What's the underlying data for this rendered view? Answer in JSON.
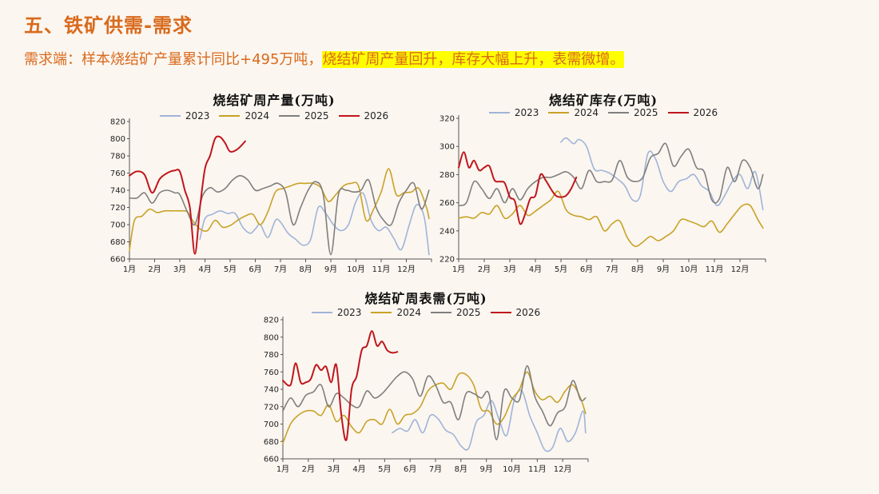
{
  "header": {
    "title": "五、铁矿供需-需求",
    "subtitle_plain": "需求端：样本烧结矿产量累计同比+495万吨，",
    "subtitle_highlight": "烧结矿周产量回升，库存大幅上升，表需微增。"
  },
  "colors": {
    "2023": "#9fb4d9",
    "2024": "#c9a227",
    "2025": "#7f7f7f",
    "2026": "#c0151b",
    "accent": "#d96a1c",
    "highlight": "#ffff00"
  },
  "chart_data": [
    {
      "id": "production",
      "type": "line",
      "title": "烧结矿周产量(万吨)",
      "months": [
        "1月",
        "2月",
        "3月",
        "4月",
        "5月",
        "6月",
        "7月",
        "8月",
        "9月",
        "10月",
        "11月",
        "12月"
      ],
      "ylim": [
        660,
        820
      ],
      "yticks": [
        660,
        680,
        700,
        720,
        740,
        760,
        780,
        800,
        820
      ],
      "grid": false,
      "legend_position": "top",
      "series": [
        {
          "name": "2023",
          "x": [
            3.8,
            4.0,
            4.3,
            4.6,
            4.9,
            5.2,
            5.5,
            5.8,
            6.0,
            6.2,
            6.5,
            6.8,
            7.0,
            7.3,
            7.6,
            7.9,
            8.2,
            8.5,
            8.8,
            9.1,
            9.4,
            9.7,
            10.0,
            10.3,
            10.6,
            10.9,
            11.2,
            11.5,
            11.8,
            12.1,
            12.4,
            12.7,
            12.9
          ],
          "values": [
            683,
            707,
            712,
            716,
            713,
            713,
            697,
            690,
            695,
            700,
            685,
            705,
            703,
            690,
            683,
            676,
            683,
            720,
            713,
            700,
            693,
            700,
            727,
            736,
            705,
            693,
            697,
            684,
            671,
            698,
            723,
            710,
            665
          ]
        },
        {
          "name": "2024",
          "x": [
            1.0,
            1.2,
            1.5,
            1.8,
            2.1,
            2.4,
            2.7,
            3.0,
            3.3,
            3.5,
            3.8,
            4.1,
            4.4,
            4.7,
            5.0,
            5.3,
            5.6,
            5.9,
            6.2,
            6.5,
            6.8,
            7.1,
            7.4,
            7.7,
            8.0,
            8.3,
            8.6,
            8.9,
            9.2,
            9.5,
            9.8,
            10.1,
            10.4,
            10.7,
            11.0,
            11.3,
            11.6,
            11.9,
            12.2,
            12.5,
            12.8,
            12.9
          ],
          "values": [
            670,
            705,
            710,
            718,
            714,
            716,
            716,
            716,
            715,
            705,
            695,
            693,
            705,
            697,
            699,
            705,
            710,
            712,
            700,
            715,
            738,
            742,
            745,
            748,
            748,
            748,
            743,
            727,
            735,
            745,
            748,
            745,
            705,
            718,
            738,
            765,
            735,
            737,
            738,
            742,
            720,
            707
          ]
        },
        {
          "name": "2025",
          "x": [
            1.0,
            1.3,
            1.6,
            1.9,
            2.2,
            2.5,
            2.8,
            3.0,
            3.3,
            3.6,
            3.9,
            4.2,
            4.5,
            4.8,
            5.1,
            5.4,
            5.7,
            6.0,
            6.3,
            6.6,
            6.9,
            7.2,
            7.5,
            7.8,
            8.1,
            8.4,
            8.7,
            9.0,
            9.3,
            9.6,
            9.9,
            10.2,
            10.5,
            10.8,
            11.1,
            11.4,
            11.7,
            12.0,
            12.3,
            12.6,
            12.9
          ],
          "values": [
            731,
            731,
            737,
            725,
            737,
            740,
            737,
            735,
            715,
            700,
            733,
            743,
            738,
            742,
            752,
            757,
            752,
            740,
            742,
            745,
            748,
            738,
            700,
            720,
            740,
            750,
            735,
            665,
            735,
            740,
            738,
            740,
            752,
            720,
            705,
            700,
            725,
            740,
            748,
            718,
            740
          ]
        },
        {
          "name": "2026",
          "x": [
            1.0,
            1.3,
            1.6,
            1.9,
            2.2,
            2.5,
            2.8,
            3.0,
            3.2,
            3.4,
            3.6,
            3.8,
            4.0,
            4.2,
            4.4,
            4.6,
            4.8,
            5.0,
            5.3,
            5.6
          ],
          "values": [
            757,
            762,
            758,
            737,
            753,
            760,
            763,
            762,
            740,
            720,
            666,
            720,
            765,
            780,
            800,
            802,
            795,
            785,
            788,
            797
          ]
        }
      ]
    },
    {
      "id": "inventory",
      "type": "line",
      "title": "烧结矿库存(万吨)",
      "months": [
        "1月",
        "2月",
        "3月",
        "4月",
        "5月",
        "6月",
        "7月",
        "8月",
        "9月",
        "10月",
        "11月",
        "12月"
      ],
      "ylim": [
        220,
        320
      ],
      "yticks": [
        220,
        240,
        260,
        280,
        300,
        320
      ],
      "grid": false,
      "legend_position": "top",
      "series": [
        {
          "name": "2023",
          "x": [
            5.0,
            5.2,
            5.5,
            5.7,
            6.0,
            6.3,
            6.6,
            6.9,
            7.2,
            7.5,
            7.8,
            8.1,
            8.4,
            8.7,
            9.0,
            9.3,
            9.6,
            9.9,
            10.2,
            10.5,
            10.8,
            11.1,
            11.4,
            11.7,
            12.0,
            12.3,
            12.6,
            12.9
          ],
          "values": [
            303,
            306,
            302,
            305,
            300,
            284,
            283,
            281,
            277,
            272,
            262,
            265,
            295,
            291,
            275,
            268,
            275,
            277,
            280,
            272,
            268,
            258,
            265,
            275,
            280,
            270,
            282,
            255
          ]
        },
        {
          "name": "2024",
          "x": [
            1.0,
            1.3,
            1.6,
            1.9,
            2.2,
            2.5,
            2.8,
            3.1,
            3.4,
            3.7,
            4.0,
            4.3,
            4.6,
            4.9,
            5.2,
            5.5,
            5.8,
            6.1,
            6.4,
            6.7,
            7.0,
            7.3,
            7.6,
            7.9,
            8.2,
            8.5,
            8.8,
            9.1,
            9.4,
            9.7,
            10.0,
            10.3,
            10.6,
            10.9,
            11.2,
            11.5,
            11.8,
            12.1,
            12.4,
            12.7,
            12.9
          ],
          "values": [
            249,
            250,
            249,
            253,
            252,
            258,
            249,
            252,
            258,
            251,
            254,
            258,
            262,
            268,
            255,
            251,
            250,
            248,
            250,
            240,
            245,
            247,
            235,
            229,
            232,
            236,
            233,
            236,
            240,
            248,
            247,
            245,
            243,
            247,
            239,
            245,
            252,
            258,
            258,
            248,
            242
          ]
        },
        {
          "name": "2025",
          "x": [
            1.0,
            1.3,
            1.6,
            1.9,
            2.2,
            2.5,
            2.8,
            3.1,
            3.4,
            3.7,
            4.0,
            4.3,
            4.6,
            4.9,
            5.2,
            5.5,
            5.8,
            6.1,
            6.4,
            6.7,
            7.0,
            7.3,
            7.6,
            7.9,
            8.2,
            8.5,
            8.8,
            9.1,
            9.4,
            9.7,
            10.0,
            10.3,
            10.6,
            10.9,
            11.2,
            11.5,
            11.8,
            12.1,
            12.4,
            12.7,
            12.9
          ],
          "values": [
            258,
            260,
            275,
            270,
            263,
            270,
            260,
            270,
            262,
            270,
            275,
            278,
            278,
            280,
            282,
            278,
            270,
            283,
            275,
            275,
            276,
            290,
            278,
            275,
            278,
            292,
            295,
            302,
            286,
            293,
            298,
            285,
            282,
            262,
            263,
            285,
            275,
            290,
            285,
            270,
            280
          ]
        },
        {
          "name": "2026",
          "x": [
            1.0,
            1.2,
            1.4,
            1.6,
            1.8,
            2.0,
            2.2,
            2.4,
            2.6,
            2.8,
            3.0,
            3.2,
            3.4,
            3.6,
            3.8,
            4.0,
            4.2,
            4.4,
            4.6,
            4.8,
            5.0,
            5.2,
            5.4,
            5.6
          ],
          "values": [
            285,
            296,
            285,
            290,
            283,
            285,
            286,
            276,
            275,
            274,
            264,
            261,
            245,
            252,
            263,
            265,
            280,
            276,
            270,
            265,
            264,
            265,
            270,
            278
          ]
        }
      ]
    },
    {
      "id": "apparent_demand",
      "type": "line",
      "title": "烧结矿周表需(万吨)",
      "months": [
        "1月",
        "2月",
        "3月",
        "4月",
        "5月",
        "6月",
        "7月",
        "8月",
        "9月",
        "10月",
        "11月",
        "12月"
      ],
      "ylim": [
        660,
        820
      ],
      "yticks": [
        660,
        680,
        700,
        720,
        740,
        760,
        780,
        800,
        820
      ],
      "grid": false,
      "legend_position": "top",
      "series": [
        {
          "name": "2023",
          "x": [
            5.3,
            5.6,
            5.9,
            6.2,
            6.5,
            6.8,
            7.1,
            7.4,
            7.7,
            8.0,
            8.3,
            8.6,
            8.9,
            9.2,
            9.5,
            9.8,
            10.1,
            10.4,
            10.7,
            11.0,
            11.3,
            11.6,
            11.9,
            12.2,
            12.5,
            12.8,
            12.9
          ],
          "values": [
            690,
            695,
            692,
            705,
            690,
            710,
            706,
            693,
            688,
            675,
            672,
            702,
            710,
            727,
            705,
            687,
            728,
            738,
            710,
            690,
            670,
            673,
            695,
            680,
            690,
            715,
            690
          ]
        },
        {
          "name": "2024",
          "x": [
            1.0,
            1.3,
            1.6,
            1.9,
            2.2,
            2.5,
            2.8,
            3.1,
            3.4,
            3.7,
            4.0,
            4.3,
            4.6,
            4.9,
            5.2,
            5.5,
            5.8,
            6.1,
            6.4,
            6.7,
            7.0,
            7.3,
            7.6,
            7.9,
            8.2,
            8.5,
            8.8,
            9.1,
            9.4,
            9.7,
            10.0,
            10.3,
            10.6,
            10.9,
            11.2,
            11.5,
            11.8,
            12.1,
            12.4,
            12.7,
            12.9
          ],
          "values": [
            678,
            700,
            710,
            715,
            715,
            710,
            722,
            703,
            710,
            697,
            690,
            703,
            705,
            700,
            717,
            700,
            710,
            712,
            720,
            738,
            745,
            747,
            740,
            757,
            757,
            745,
            717,
            715,
            700,
            708,
            728,
            740,
            760,
            738,
            728,
            732,
            725,
            738,
            745,
            730,
            712
          ]
        },
        {
          "name": "2025",
          "x": [
            1.0,
            1.3,
            1.6,
            1.9,
            2.2,
            2.5,
            2.8,
            3.1,
            3.4,
            3.7,
            4.0,
            4.3,
            4.6,
            4.9,
            5.2,
            5.5,
            5.8,
            6.1,
            6.4,
            6.7,
            7.0,
            7.3,
            7.6,
            7.9,
            8.2,
            8.5,
            8.8,
            9.1,
            9.4,
            9.7,
            10.0,
            10.3,
            10.6,
            10.9,
            11.2,
            11.5,
            11.8,
            12.1,
            12.4,
            12.7,
            12.9
          ],
          "values": [
            715,
            730,
            720,
            733,
            737,
            745,
            720,
            735,
            730,
            722,
            720,
            738,
            730,
            735,
            745,
            755,
            760,
            752,
            732,
            755,
            745,
            725,
            725,
            705,
            735,
            735,
            730,
            735,
            682,
            738,
            730,
            728,
            767,
            732,
            715,
            698,
            713,
            720,
            750,
            728,
            730
          ]
        },
        {
          "name": "2026",
          "x": [
            1.0,
            1.3,
            1.5,
            1.7,
            1.9,
            2.1,
            2.3,
            2.5,
            2.7,
            2.9,
            3.1,
            3.3,
            3.5,
            3.7,
            3.9,
            4.1,
            4.3,
            4.5,
            4.7,
            4.9,
            5.1,
            5.3,
            5.5
          ],
          "values": [
            750,
            745,
            770,
            748,
            748,
            752,
            768,
            762,
            766,
            748,
            768,
            710,
            682,
            740,
            755,
            785,
            790,
            807,
            790,
            795,
            785,
            782,
            783
          ]
        }
      ]
    }
  ]
}
